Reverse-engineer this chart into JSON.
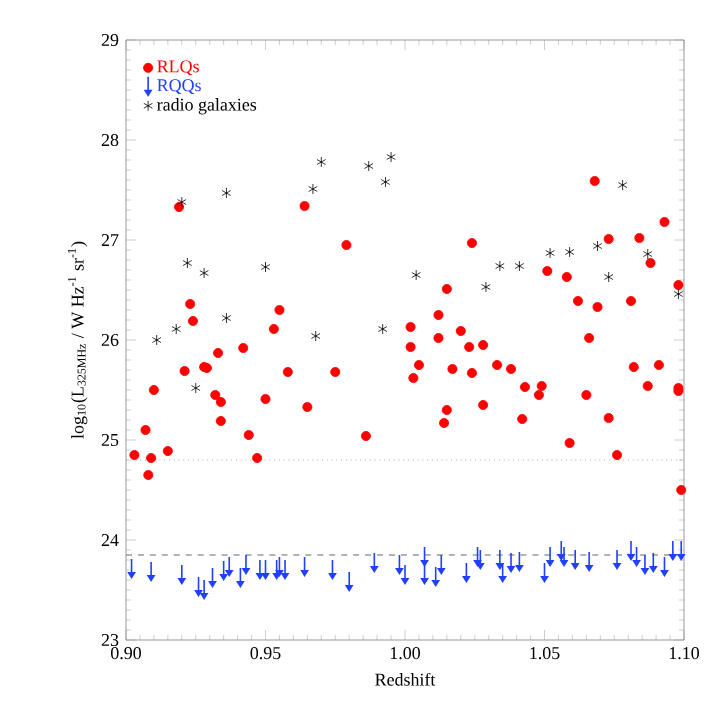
{
  "chart_data": {
    "type": "scatter",
    "xlabel": "Redshift",
    "ylabel": "log$_{10}$(L$_{325MHz}$ / W Hz$^{-1}$ sr$^{-1}$)",
    "xlim": [
      0.9,
      1.1
    ],
    "ylim": [
      23,
      29
    ],
    "xticks": [
      {
        "value": 0.9,
        "label": "0.90"
      },
      {
        "value": 0.95,
        "label": "0.95"
      },
      {
        "value": 1.0,
        "label": "1.00"
      },
      {
        "value": 1.05,
        "label": "1.05"
      },
      {
        "value": 1.1,
        "label": "1.10"
      }
    ],
    "yticks": [
      23,
      24,
      25,
      26,
      27,
      28,
      29
    ],
    "legend": "top left",
    "grid": false,
    "ref_lines": [
      {
        "axis": "y",
        "value": 24.8,
        "color": "#808080",
        "line_style": "dotted"
      },
      {
        "axis": "y",
        "value": 23.85,
        "color": "#404040",
        "line_style": "dashed"
      }
    ],
    "series": [
      {
        "name": "RLQs",
        "color": "#ff0000",
        "marker": "circle",
        "x": [
          0.903,
          0.907,
          0.909,
          0.908,
          0.91,
          0.915,
          0.921,
          0.928,
          0.929,
          0.933,
          0.932,
          0.934,
          0.934,
          0.942,
          0.944,
          0.947,
          0.95,
          0.958,
          0.965,
          0.975,
          0.986,
          0.919,
          0.923,
          0.924,
          0.953,
          0.955,
          0.964,
          0.979,
          1.002,
          1.002,
          1.012,
          1.012,
          1.015,
          1.02,
          1.023,
          1.028,
          1.024,
          1.051,
          1.058,
          1.062,
          1.066,
          1.068,
          1.069,
          1.073,
          1.081,
          1.084,
          1.088,
          1.093,
          1.098,
          1.005,
          1.003,
          1.017,
          1.015,
          1.014,
          1.024,
          1.028,
          1.033,
          1.038,
          1.043,
          1.042,
          1.048,
          1.049,
          1.059,
          1.065,
          1.073,
          1.076,
          1.082,
          1.087,
          1.091,
          1.098,
          1.098,
          1.099
        ],
        "values": [
          24.85,
          25.1,
          24.82,
          24.65,
          25.5,
          24.89,
          25.69,
          25.73,
          25.72,
          25.87,
          25.45,
          25.38,
          25.19,
          25.92,
          25.05,
          24.82,
          25.41,
          25.68,
          25.33,
          25.68,
          25.04,
          27.33,
          26.36,
          26.19,
          26.11,
          26.3,
          27.34,
          26.95,
          26.13,
          25.93,
          26.25,
          26.02,
          26.51,
          26.09,
          25.93,
          25.95,
          26.97,
          26.69,
          26.63,
          26.39,
          26.02,
          27.59,
          26.33,
          27.01,
          26.39,
          27.02,
          26.77,
          27.18,
          26.55,
          25.75,
          25.62,
          25.71,
          25.3,
          25.17,
          25.67,
          25.35,
          25.75,
          25.71,
          25.53,
          25.21,
          25.45,
          25.54,
          24.97,
          25.45,
          25.22,
          24.85,
          25.73,
          25.54,
          25.75,
          25.49,
          25.52,
          24.5
        ]
      },
      {
        "name": "RQQs",
        "color": "#2040ff",
        "x": [
          0.902,
          0.909,
          0.92,
          0.926,
          0.928,
          0.931,
          0.935,
          0.937,
          0.941,
          0.943,
          0.948,
          0.95,
          0.954,
          0.955,
          0.957,
          0.964,
          0.974,
          0.98,
          0.989,
          0.998,
          1.0,
          1.007,
          1.007,
          1.011,
          1.013,
          1.022,
          1.026,
          1.027,
          1.034,
          1.035,
          1.038,
          1.041,
          1.05,
          1.052,
          1.056,
          1.057,
          1.061,
          1.066,
          1.076,
          1.081,
          1.083,
          1.086,
          1.089,
          1.093,
          1.096,
          1.099
        ],
        "values": [
          23.71,
          23.68,
          23.65,
          23.53,
          23.5,
          23.62,
          23.69,
          23.73,
          23.62,
          23.75,
          23.7,
          23.7,
          23.7,
          23.73,
          23.7,
          23.73,
          23.7,
          23.58,
          23.77,
          23.75,
          23.65,
          23.83,
          23.65,
          23.63,
          23.75,
          23.67,
          23.83,
          23.8,
          23.8,
          23.67,
          23.77,
          23.78,
          23.67,
          23.83,
          23.89,
          23.83,
          23.8,
          23.78,
          23.8,
          23.89,
          23.83,
          23.75,
          23.77,
          23.73,
          23.89,
          23.89
        ]
      },
      {
        "name": "radio galaxies",
        "color": "#000000",
        "marker": "cross",
        "x": [
          0.92,
          0.922,
          0.928,
          0.918,
          0.911,
          0.936,
          0.936,
          0.95,
          0.967,
          0.97,
          0.968,
          0.987,
          0.993,
          0.995,
          0.992,
          1.004,
          1.029,
          1.034,
          1.041,
          1.052,
          1.059,
          1.069,
          1.073,
          1.078,
          1.087,
          1.098,
          0.925
        ],
        "values": [
          27.38,
          26.77,
          26.67,
          26.11,
          26.0,
          27.47,
          26.22,
          26.73,
          27.51,
          27.78,
          26.04,
          27.74,
          27.58,
          27.83,
          26.11,
          26.65,
          26.53,
          26.74,
          26.74,
          26.87,
          26.88,
          26.94,
          26.63,
          27.55,
          26.86,
          26.46,
          25.52
        ]
      }
    ]
  }
}
